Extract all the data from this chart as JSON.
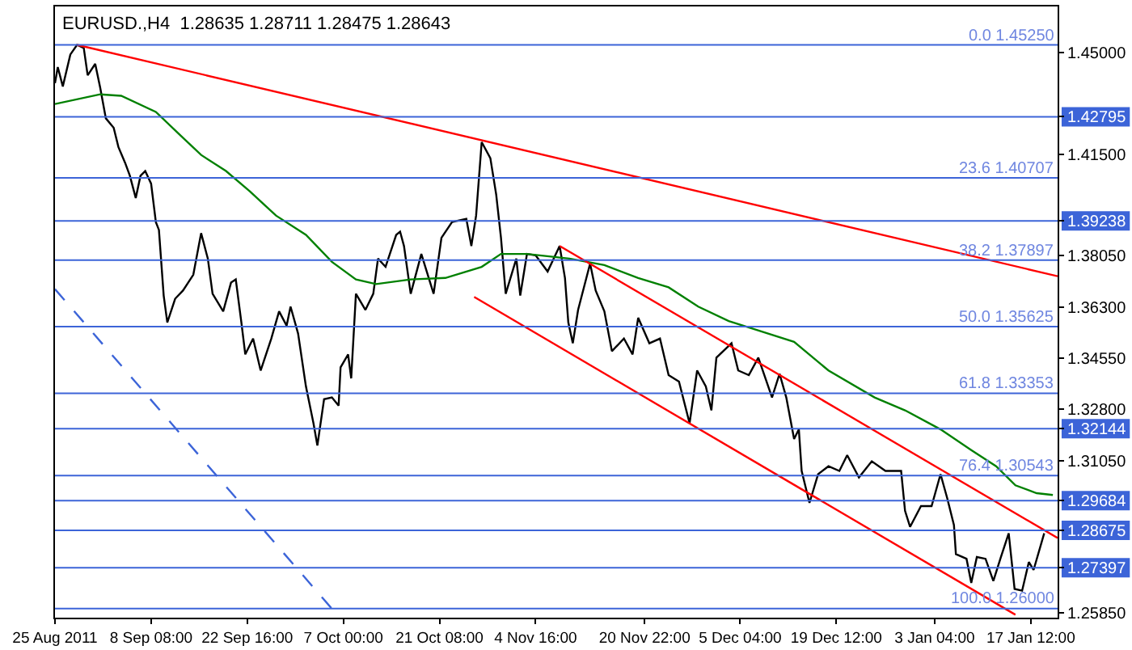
{
  "chart_data": {
    "type": "line",
    "title": "EURUSD.,H4  1.28635 1.28711 1.28475 1.28643",
    "xlim": [
      "2011-08-25T00:00",
      "2012-01-21T12:00"
    ],
    "ylim": [
      1.2569,
      1.4656
    ],
    "xticks": [
      {
        "value": "2011-08-25T00:00",
        "label": "25 Aug 2011"
      },
      {
        "value": "2011-09-08T08:00",
        "label": "8 Sep 08:00"
      },
      {
        "value": "2011-09-22T16:00",
        "label": "22 Sep 16:00"
      },
      {
        "value": "2011-10-07T00:00",
        "label": "7 Oct 00:00"
      },
      {
        "value": "2011-10-21T08:00",
        "label": "21 Oct 08:00"
      },
      {
        "value": "2011-11-04T16:00",
        "label": "4 Nov 16:00"
      },
      {
        "value": "2011-11-20T22:00",
        "label": "20 Nov 22:00"
      },
      {
        "value": "2011-12-05T04:00",
        "label": "5 Dec 04:00"
      },
      {
        "value": "2011-12-19T12:00",
        "label": "19 Dec 12:00"
      },
      {
        "value": "2012-01-03T04:00",
        "label": "3 Jan 04:00"
      },
      {
        "value": "2012-01-17T12:00",
        "label": "17 Jan 12:00"
      }
    ],
    "yticks": [
      {
        "value": 1.45,
        "label": "1.45000"
      },
      {
        "value": 1.42795,
        "label": "1.42795"
      },
      {
        "value": 1.415,
        "label": "1.41500"
      },
      {
        "value": 1.39238,
        "label": "1.39238"
      },
      {
        "value": 1.3805,
        "label": "1.38050"
      },
      {
        "value": 1.363,
        "label": "1.36300"
      },
      {
        "value": 1.3455,
        "label": "1.34550"
      },
      {
        "value": 1.328,
        "label": "1.32800"
      },
      {
        "value": 1.32144,
        "label": "1.32144"
      },
      {
        "value": 1.3105,
        "label": "1.31050"
      },
      {
        "value": 1.29684,
        "label": "1.29684"
      },
      {
        "value": 1.28675,
        "label": "1.28675"
      },
      {
        "value": 1.27397,
        "label": "1.27397"
      },
      {
        "value": 1.2585,
        "label": "1.25850"
      }
    ],
    "grid": false,
    "marker": "none",
    "series": [
      {
        "color": "#000000",
        "x": [
          "2011-08-25T00:00",
          "2011-08-25T10:00",
          "2011-08-26T04:00",
          "2011-08-27T07:00",
          "2011-08-28T07:00",
          "2011-08-29T07:00",
          "2011-08-29T21:00",
          "2011-08-31T00:00",
          "2011-08-31T18:00",
          "2011-09-01T14:00",
          "2011-09-02T18:00",
          "2011-09-03T11:00",
          "2011-09-04T11:00",
          "2011-09-05T04:00",
          "2011-09-06T01:00",
          "2011-09-06T18:00",
          "2011-09-07T11:00",
          "2011-09-08T08:00",
          "2011-09-09T01:00",
          "2011-09-09T12:00",
          "2011-09-10T05:00",
          "2011-09-10T18:00",
          "2011-09-11T22:00",
          "2011-09-13T02:00",
          "2011-09-14T15:00",
          "2011-09-15T19:00",
          "2011-09-16T19:00",
          "2011-09-17T12:00",
          "2011-09-19T02:00",
          "2011-09-20T06:00",
          "2011-09-20T23:00",
          "2011-09-21T19:00",
          "2011-09-22T09:00",
          "2011-09-23T13:00",
          "2011-09-24T16:00",
          "2011-09-26T06:00",
          "2011-09-27T10:00",
          "2011-09-28T13:00",
          "2011-09-29T03:00",
          "2011-09-30T06:00",
          "2011-10-01T10:00",
          "2011-10-02T13:00",
          "2011-10-03T03:00",
          "2011-10-04T03:00",
          "2011-10-05T07:00",
          "2011-10-06T07:00",
          "2011-10-06T14:00",
          "2011-10-07T17:00",
          "2011-10-08T04:00",
          "2011-10-08T21:00",
          "2011-10-10T07:00",
          "2011-10-11T11:00",
          "2011-10-12T04:00",
          "2011-10-13T07:00",
          "2011-10-14T21:00",
          "2011-10-15T11:00",
          "2011-10-16T01:00",
          "2011-10-17T01:00",
          "2011-10-18T15:00",
          "2011-10-20T11:00",
          "2011-10-21T15:00",
          "2011-10-23T05:00",
          "2011-10-25T08:00",
          "2011-10-26T02:00",
          "2011-10-26T19:00",
          "2011-10-27T15:00",
          "2011-10-28T22:00",
          "2011-10-29T19:00",
          "2011-10-30T12:00",
          "2011-10-31T05:00",
          "2011-11-01T19:00",
          "2011-11-02T09:00",
          "2011-11-03T09:00",
          "2011-11-04T16:00",
          "2011-11-06T11:00",
          "2011-11-08T06:00",
          "2011-11-09T01:00",
          "2011-11-09T13:00",
          "2011-11-10T05:00",
          "2011-11-11T00:00",
          "2011-11-12T19:00",
          "2011-11-13T15:00",
          "2011-11-14T22:00",
          "2011-11-16T01:00",
          "2011-11-17T20:00",
          "2011-11-19T03:00",
          "2011-11-19T23:00",
          "2011-11-21T15:00",
          "2011-11-23T05:00",
          "2011-11-24T12:00",
          "2011-11-26T01:00",
          "2011-11-27T15:00",
          "2011-11-28T18:00",
          "2011-11-30T01:00",
          "2011-11-30T21:00",
          "2011-12-01T15:00",
          "2011-12-03T21:00",
          "2011-12-04T21:00",
          "2011-12-06T11:00",
          "2011-12-07T21:00",
          "2011-12-09T22:00",
          "2011-12-11T01:00",
          "2011-12-12T01:00",
          "2011-12-13T05:00",
          "2011-12-13T22:00",
          "2011-12-14T08:00",
          "2011-12-15T12:00",
          "2011-12-16T19:00",
          "2011-12-18T08:00",
          "2011-12-19T23:00",
          "2011-12-21T03:00",
          "2011-12-22T21:00",
          "2011-12-24T19:00",
          "2011-12-26T20:00",
          "2011-12-29T04:00",
          "2011-12-29T18:00",
          "2011-12-30T12:00",
          "2012-01-01T03:00",
          "2012-01-02T17:00",
          "2012-01-04T01:00",
          "2012-01-05T01:00",
          "2012-01-06T01:00",
          "2012-01-06T08:00",
          "2012-01-07T22:00",
          "2012-01-08T15:00",
          "2012-01-09T11:00",
          "2012-01-10T18:00",
          "2012-01-11T22:00",
          "2012-01-13T01:00",
          "2012-01-14T05:00",
          "2012-01-15T02:00",
          "2012-01-16T05:00",
          "2012-01-17T05:00",
          "2012-01-17T22:00",
          "2012-01-19T12:00"
        ],
        "values": [
          1.4394,
          1.4449,
          1.4383,
          1.4492,
          1.4525,
          1.4514,
          1.4421,
          1.446,
          1.4378,
          1.4274,
          1.4242,
          1.4176,
          1.4122,
          1.4078,
          1.4002,
          1.4078,
          1.4094,
          1.4051,
          1.392,
          1.3893,
          1.3669,
          1.3577,
          1.3658,
          1.3686,
          1.374,
          1.3882,
          1.3795,
          1.3675,
          1.3615,
          1.3713,
          1.3724,
          1.3577,
          1.3468,
          1.3522,
          1.3413,
          1.3522,
          1.3615,
          1.3566,
          1.3631,
          1.3539,
          1.3359,
          1.3233,
          1.3157,
          1.3315,
          1.3321,
          1.3293,
          1.3424,
          1.3468,
          1.3386,
          1.3675,
          1.362,
          1.3675,
          1.3795,
          1.3767,
          1.3876,
          1.3887,
          1.3838,
          1.3675,
          1.3811,
          1.3675,
          1.3866,
          1.392,
          1.3931,
          1.3838,
          1.3942,
          1.4193,
          1.4138,
          1.4013,
          1.3866,
          1.3675,
          1.3795,
          1.3669,
          1.3811,
          1.3806,
          1.3751,
          1.3838,
          1.3729,
          1.3577,
          1.3506,
          1.362,
          1.3778,
          1.3686,
          1.3615,
          1.3479,
          1.3522,
          1.3468,
          1.3593,
          1.3506,
          1.3522,
          1.3397,
          1.3375,
          1.3233,
          1.3413,
          1.3359,
          1.3277,
          1.3457,
          1.3506,
          1.3413,
          1.3397,
          1.3457,
          1.3321,
          1.3402,
          1.3321,
          1.3179,
          1.3212,
          1.307,
          1.2961,
          1.3059,
          1.3086,
          1.307,
          1.3124,
          1.3048,
          1.3103,
          1.307,
          1.307,
          1.2934,
          1.2879,
          1.295,
          1.295,
          1.3059,
          1.2977,
          1.2885,
          1.2786,
          1.277,
          1.2688,
          1.2776,
          1.277,
          1.2694,
          1.2776,
          1.2857,
          1.2667,
          1.2661,
          1.2759,
          1.2732,
          1.2857
        ]
      },
      {
        "color": "#008000",
        "x": [
          "2011-08-25T00:00",
          "2011-08-31T18:00",
          "2011-09-03T21:00",
          "2011-09-09T01:00",
          "2011-09-12T19:00",
          "2011-09-15T19:00",
          "2011-09-19T12:00",
          "2011-09-23T02:00",
          "2011-09-26T23:00",
          "2011-10-01T10:00",
          "2011-10-05T07:00",
          "2011-10-08T21:00",
          "2011-10-11T21:00",
          "2011-10-17T01:00",
          "2011-10-22T05:00",
          "2011-10-27T15:00",
          "2011-10-30T12:00",
          "2011-11-03T09:00",
          "2011-11-09T17:00",
          "2011-11-14T22:00",
          "2011-11-19T23:00",
          "2011-11-24T12:00",
          "2011-11-28T22:00",
          "2011-12-03T11:00",
          "2011-12-07T04:00",
          "2011-12-13T05:00",
          "2011-12-18T08:00",
          "2011-12-25T05:00",
          "2011-12-29T18:00",
          "2012-01-04T01:00",
          "2012-01-08T15:00",
          "2012-01-12T08:00",
          "2012-01-15T05:00",
          "2012-01-18T09:00",
          "2012-01-20T19:00"
        ],
        "values": [
          1.4323,
          1.4356,
          1.4351,
          1.4296,
          1.4214,
          1.4149,
          1.4094,
          1.4024,
          1.3942,
          1.3876,
          1.3784,
          1.3724,
          1.3708,
          1.3724,
          1.3729,
          1.3767,
          1.3811,
          1.3811,
          1.3795,
          1.3773,
          1.3729,
          1.3697,
          1.3631,
          1.3582,
          1.3555,
          1.3511,
          1.3413,
          1.3321,
          1.3277,
          1.3212,
          1.3141,
          1.3086,
          1.3021,
          1.2994,
          1.2988
        ]
      },
      {
        "color": "#ff0000",
        "x": [
          "2011-08-28T07:00",
          "2012-01-21T12:00"
        ],
        "values": [
          1.4525,
          1.3735
        ]
      },
      {
        "color": "#ff0000",
        "x": [
          "2011-11-08T06:00",
          "2012-01-21T12:00"
        ],
        "values": [
          1.3838,
          1.2841
        ]
      },
      {
        "color": "#ff0000",
        "x": [
          "2011-10-26T12:00",
          "2012-01-15T05:00"
        ],
        "values": [
          1.3664,
          1.2579
        ]
      },
      {
        "color": "#3c64d8",
        "line_style": "dashed",
        "x": [
          "2011-08-25T00:00",
          "2011-10-05T20:00"
        ],
        "values": [
          1.3691,
          1.2585
        ]
      }
    ],
    "ref_lines": [
      {
        "axis": "y",
        "value": 1.4525,
        "label": "0.0 1.45250",
        "color": "#3c64d8"
      },
      {
        "axis": "y",
        "value": 1.42795,
        "color": "#3c64d8"
      },
      {
        "axis": "y",
        "value": 1.40707,
        "label": "23.6 1.40707",
        "color": "#3c64d8"
      },
      {
        "axis": "y",
        "value": 1.39238,
        "color": "#3c64d8"
      },
      {
        "axis": "y",
        "value": 1.37897,
        "label": "38.2 1.37897",
        "color": "#3c64d8"
      },
      {
        "axis": "y",
        "value": 1.35625,
        "label": "50.0 1.35625",
        "color": "#3c64d8"
      },
      {
        "axis": "y",
        "value": 1.33353,
        "label": "61.8 1.33353",
        "color": "#3c64d8"
      },
      {
        "axis": "y",
        "value": 1.32144,
        "color": "#3c64d8"
      },
      {
        "axis": "y",
        "value": 1.30543,
        "label": "76.4 1.30543",
        "color": "#3c64d8"
      },
      {
        "axis": "y",
        "value": 1.29684,
        "color": "#3c64d8"
      },
      {
        "axis": "y",
        "value": 1.28675,
        "color": "#3c64d8"
      },
      {
        "axis": "y",
        "value": 1.27397,
        "color": "#3c64d8"
      },
      {
        "axis": "y",
        "value": 1.26,
        "label": "100.0 1.26000",
        "color": "#3c64d8"
      }
    ]
  }
}
